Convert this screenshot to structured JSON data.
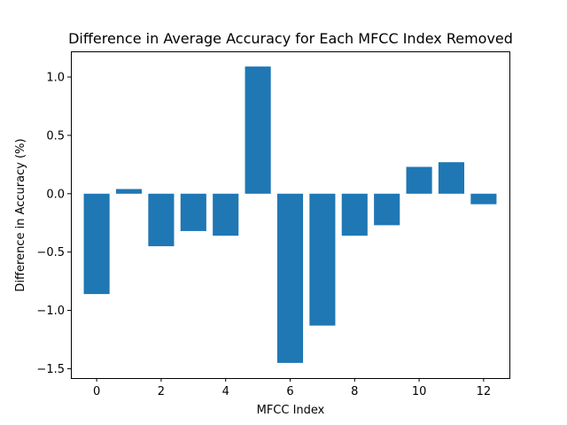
{
  "chart_data": {
    "type": "bar",
    "title": "Difference in Average Accuracy for Each MFCC Index Removed",
    "xlabel": "MFCC Index",
    "ylabel": "Difference in Accuracy (%)",
    "categories": [
      0,
      1,
      2,
      3,
      4,
      5,
      6,
      7,
      8,
      9,
      10,
      11,
      12
    ],
    "values": [
      -0.86,
      0.04,
      -0.45,
      -0.32,
      -0.36,
      1.09,
      -1.45,
      -1.13,
      -0.36,
      -0.27,
      0.23,
      0.27,
      -0.09
    ],
    "xlim": [
      -0.8,
      12.8
    ],
    "ylim": [
      -1.58,
      1.22
    ],
    "xticks": [
      0,
      2,
      4,
      6,
      8,
      10,
      12
    ],
    "xtick_labels": [
      "0",
      "2",
      "4",
      "6",
      "8",
      "10",
      "12"
    ],
    "yticks": [
      -1.5,
      -1.0,
      -0.5,
      0.0,
      0.5,
      1.0
    ],
    "ytick_labels": [
      "−1.5",
      "−1.0",
      "−0.5",
      "0.0",
      "0.5",
      "1.0"
    ],
    "bar_color": "#1f77b4",
    "grid": false,
    "legend": "none"
  }
}
